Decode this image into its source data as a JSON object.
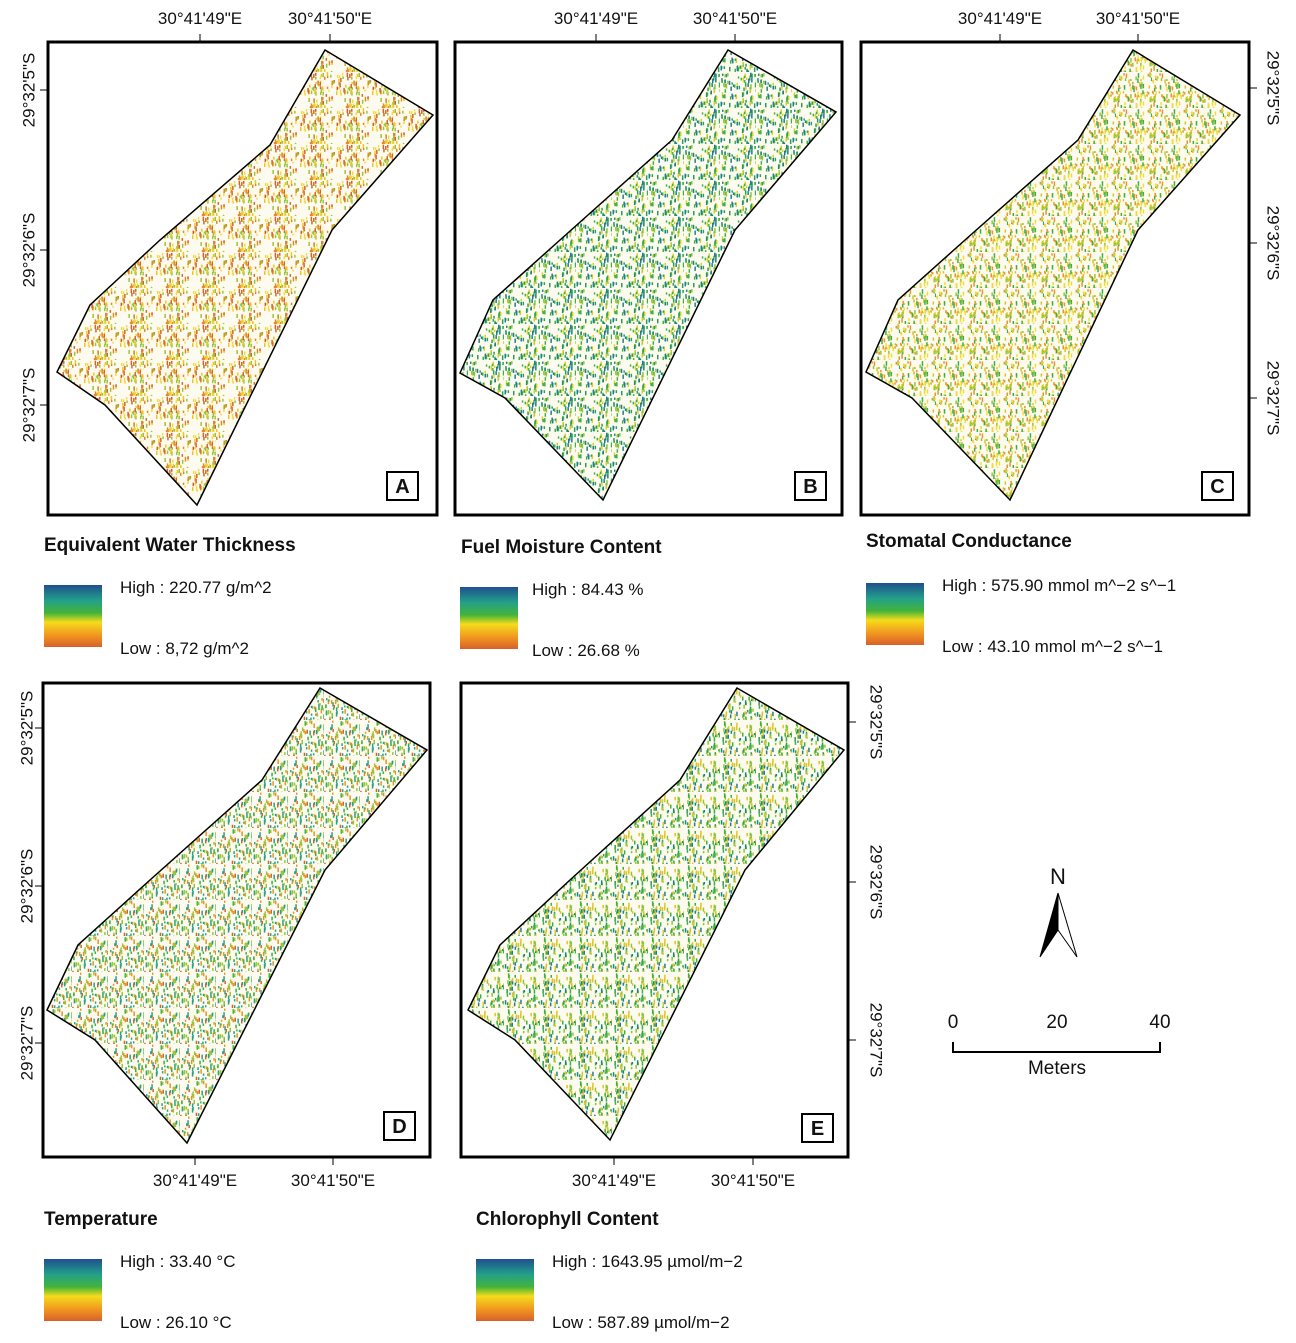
{
  "panels": [
    {
      "letter": "A",
      "title": "Equivalent Water Thickness",
      "legend": {
        "high": "High : 220.77 g/m^2",
        "low": "Low : 8,72 g/m^2"
      },
      "x_labels": [
        "30°41'49\"E",
        "30°41'50\"E"
      ],
      "y_labels": [
        "29°32'5\"S",
        "29°32'6\"S",
        "29°32'7\"S"
      ]
    },
    {
      "letter": "B",
      "title": "Fuel Moisture Content",
      "legend": {
        "high": "High : 84.43 %",
        "low": "Low : 26.68 %"
      },
      "x_labels": [
        "30°41'49\"E",
        "30°41'50\"E"
      ]
    },
    {
      "letter": "C",
      "title": "Stomatal Conductance",
      "legend": {
        "high": "High : 575.90 mmol m^−2 s^−1",
        "low": "Low : 43.10 mmol m^−2 s^−1"
      },
      "x_labels": [
        "30°41'49\"E",
        "30°41'50\"E"
      ],
      "y_labels": [
        "29°32'5\"S",
        "29°32'6\"S",
        "29°32'7\"S"
      ]
    },
    {
      "letter": "D",
      "title": "Temperature",
      "legend": {
        "high": "High : 33.40 °C",
        "low": "Low : 26.10 °C"
      },
      "x_labels": [
        "30°41'49\"E",
        "30°41'50\"E"
      ],
      "y_labels": [
        "29°32'5\"S",
        "29°32'6\"S",
        "29°32'7\"S"
      ]
    },
    {
      "letter": "E",
      "title": "Chlorophyll Content",
      "legend": {
        "high": "High : 1643.95 µmol/m−2",
        "low": "Low : 587.89 µmol/m−2"
      },
      "x_labels": [
        "30°41'49\"E",
        "30°41'50\"E"
      ],
      "y_labels": [
        "29°32'5\"S",
        "29°32'6\"S",
        "29°32'7\"S"
      ]
    }
  ],
  "north": "N",
  "scale_bar": {
    "labels": [
      "0",
      "20",
      "40"
    ],
    "unit": "Meters"
  }
}
